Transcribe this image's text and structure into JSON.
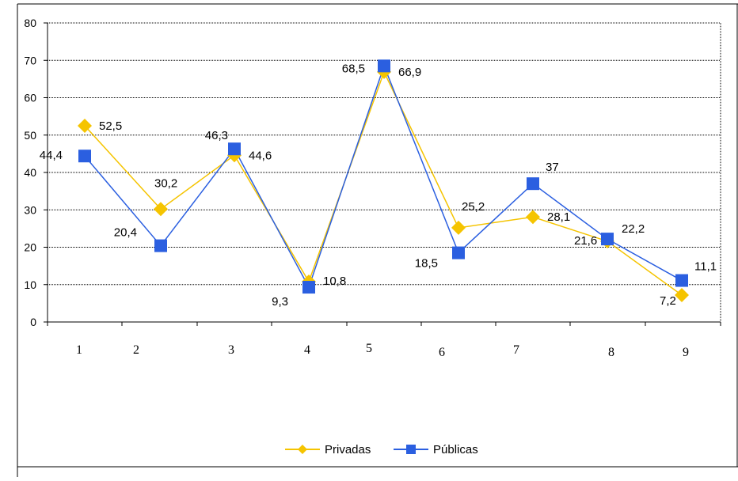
{
  "chart_data": {
    "type": "line",
    "title": "",
    "xlabel": "",
    "ylabel": "",
    "ylim": [
      0,
      80
    ],
    "y_ticks": [
      0,
      10,
      20,
      30,
      40,
      50,
      60,
      70,
      80
    ],
    "grid": "horizontal dotted",
    "legend_position": "bottom",
    "categories": [
      "1",
      "2",
      "3",
      "4",
      "5",
      "6",
      "7",
      "8",
      "9"
    ],
    "series": [
      {
        "name": "Privadas",
        "color": "#F5C400",
        "marker": "diamond",
        "values": [
          52.5,
          30.2,
          44.6,
          10.8,
          66.9,
          25.2,
          28.1,
          21.6,
          7.2
        ],
        "labels": [
          "52,5",
          "30,2",
          "44,6",
          "10,8",
          "66,9",
          "25,2",
          "28,1",
          "21,6",
          "7,2"
        ]
      },
      {
        "name": "Públicas",
        "color": "#2B5FE0",
        "marker": "square",
        "values": [
          44.4,
          20.4,
          46.3,
          9.3,
          68.5,
          18.5,
          37,
          22.2,
          11.1
        ],
        "labels": [
          "44,4",
          "20,4",
          "46,3",
          "9,3",
          "68,5",
          "18,5",
          "37",
          "22,2",
          "11,1"
        ]
      }
    ]
  }
}
